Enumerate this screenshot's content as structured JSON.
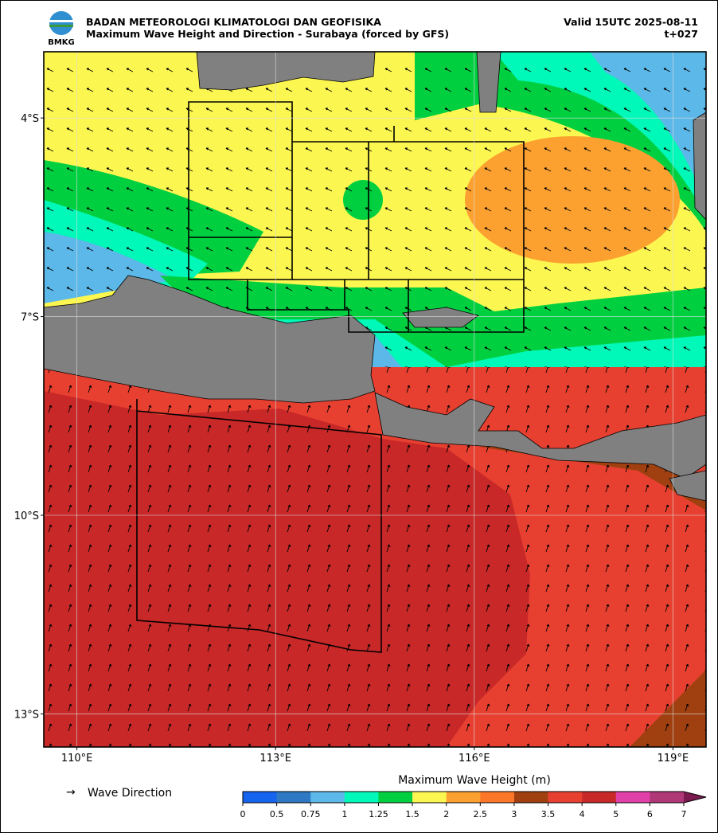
{
  "header": {
    "title": "BADAN METEOROLOGI KLIMATOLOGI DAN GEOFISIKA",
    "subtitle": "Maximum Wave Height and Direction - Surabaya (forced by GFS)",
    "valid": "Valid 15UTC 2025-08-11",
    "lead": "t+027",
    "logo": "BMKG"
  },
  "map": {
    "xlim": [
      109.5,
      119.5
    ],
    "ylim": [
      -13.5,
      -3
    ],
    "grid": true,
    "xticks": [
      {
        "value": 110,
        "label": "110°E"
      },
      {
        "value": 113,
        "label": "113°E"
      },
      {
        "value": 116,
        "label": "116°E"
      },
      {
        "value": 119,
        "label": "119°E"
      }
    ],
    "yticks": [
      {
        "value": -4,
        "label": "4°S"
      },
      {
        "value": -7,
        "label": "7°S"
      },
      {
        "value": -10,
        "label": "10°S"
      },
      {
        "value": -13,
        "label": "13°S"
      }
    ]
  },
  "legend": {
    "arrow_label": "Wave Direction"
  },
  "colorbar": {
    "label": "Maximum Wave Height (m)",
    "bounds": [
      0,
      0.5,
      0.75,
      1,
      1.25,
      1.5,
      2,
      2.5,
      3,
      3.5,
      4,
      5,
      6,
      7
    ],
    "colors": [
      "#1464f0",
      "#2e78c4",
      "#5cb8e8",
      "#00f8b8",
      "#00d040",
      "#fcf650",
      "#fca030",
      "#fc7828",
      "#a04010",
      "#e84030",
      "#c82828",
      "#e040a8",
      "#b03878"
    ],
    "extend_color": "#7c1a50"
  }
}
